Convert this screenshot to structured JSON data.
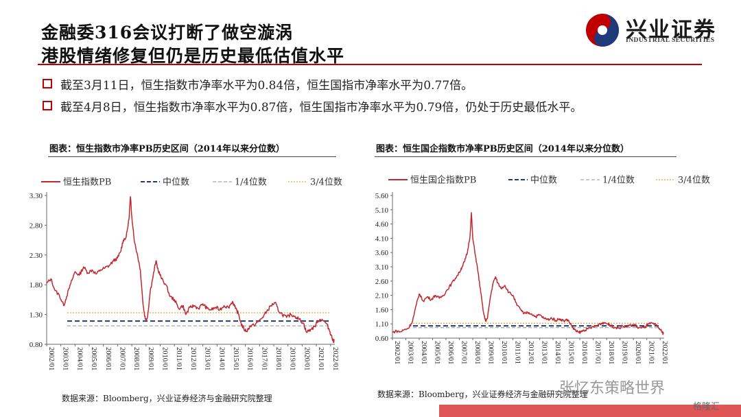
{
  "header": {
    "title_line1": "金融委316会议打断了做空漩涡",
    "title_line2": "港股情绪修复但仍是历史最低估值水平"
  },
  "logo": {
    "name_cn": "兴业证券",
    "name_en": "INDUSTRIAL SECURITIES",
    "accent": "#c00000"
  },
  "bullets": [
    "截至3月11日，恒生指数市净率水平为0.84倍，恒生国指市净率水平为0.77倍。",
    "截至4月8日，恒生指数市净率水平为0.87倍，恒生国指市净率水平为0.79倍，仍处于历史最低水平。"
  ],
  "source_note": "数据来源：Bloomberg，兴业证券经济与金融研究院整理",
  "watermark": "张忆东策略世界",
  "watermark_small": "格隆汇",
  "chart_data": [
    {
      "type": "line",
      "title": "图表：恒生指数市净率PB历史区间（2014年以来分位数）",
      "legend": [
        "恒生指数PB",
        "中位数",
        "1/4位数",
        "3/4位数"
      ],
      "legend_placement": "top",
      "x_tick_labels": [
        "2002/01",
        "2003/01",
        "2004/01",
        "2005/01",
        "2006/01",
        "2007/01",
        "2008/01",
        "2009/01",
        "2010/01",
        "2011/01",
        "2012/01",
        "2013/01",
        "2014/01",
        "2015/01",
        "2016/01",
        "2017/01",
        "2018/01",
        "2019/01",
        "2020/01",
        "2021/01",
        "2022/01"
      ],
      "y_tick_labels": [
        "0.80",
        "1.30",
        "1.80",
        "2.30",
        "2.80",
        "3.30"
      ],
      "ylim": [
        0.8,
        3.3
      ],
      "xlim": [
        2002.0,
        2022.3
      ],
      "reference_lines": {
        "median": 1.19,
        "q1": 1.11,
        "q3": 1.33
      },
      "colors": {
        "series": "#c0282d",
        "median": "#1f3a78",
        "q1": "#a6a6a6",
        "q3": "#e8a33c"
      },
      "series": [
        {
          "name": "恒生指数PB",
          "x": [
            2002.0,
            2002.3,
            2002.6,
            2002.9,
            2003.2,
            2003.4,
            2003.7,
            2004.0,
            2004.3,
            2004.6,
            2004.9,
            2005.2,
            2005.5,
            2005.8,
            2006.1,
            2006.4,
            2006.7,
            2007.0,
            2007.2,
            2007.4,
            2007.6,
            2007.8,
            2007.9,
            2008.0,
            2008.2,
            2008.4,
            2008.6,
            2008.8,
            2008.95,
            2009.1,
            2009.3,
            2009.5,
            2009.7,
            2009.85,
            2010.1,
            2010.4,
            2010.7,
            2011.0,
            2011.3,
            2011.6,
            2011.8,
            2012.1,
            2012.4,
            2012.7,
            2013.0,
            2013.3,
            2013.6,
            2013.9,
            2014.2,
            2014.5,
            2014.8,
            2015.1,
            2015.3,
            2015.5,
            2015.7,
            2015.9,
            2016.1,
            2016.3,
            2016.6,
            2016.9,
            2017.2,
            2017.5,
            2017.8,
            2018.1,
            2018.3,
            2018.6,
            2018.9,
            2019.2,
            2019.5,
            2019.8,
            2020.1,
            2020.3,
            2020.6,
            2020.9,
            2021.1,
            2021.4,
            2021.7,
            2021.9,
            2022.05,
            2022.2,
            2022.25
          ],
          "values": [
            1.82,
            1.9,
            1.7,
            1.62,
            1.45,
            1.6,
            1.82,
            2.02,
            1.96,
            2.1,
            2.0,
            2.05,
            1.98,
            2.05,
            2.08,
            2.12,
            2.2,
            2.25,
            2.35,
            2.55,
            2.6,
            2.9,
            3.28,
            2.95,
            2.5,
            2.3,
            2.05,
            1.45,
            1.22,
            1.25,
            1.7,
            1.95,
            2.2,
            2.05,
            1.9,
            1.8,
            1.6,
            1.55,
            1.4,
            1.45,
            1.3,
            1.42,
            1.45,
            1.4,
            1.48,
            1.4,
            1.38,
            1.42,
            1.38,
            1.45,
            1.42,
            1.52,
            1.4,
            1.32,
            1.15,
            1.05,
            1.02,
            1.1,
            1.12,
            1.18,
            1.25,
            1.35,
            1.45,
            1.5,
            1.38,
            1.3,
            1.25,
            1.3,
            1.27,
            1.22,
            1.15,
            1.0,
            1.05,
            1.1,
            1.2,
            1.22,
            1.15,
            1.05,
            0.95,
            0.84,
            0.87
          ]
        }
      ]
    },
    {
      "type": "line",
      "title": "图表：恒生国企指数市净率PB历史区间（2014年以来分位数）",
      "legend": [
        "恒生国企指数PB",
        "中位数",
        "1/4位数",
        "3/4位数"
      ],
      "legend_placement": "top",
      "x_tick_labels": [
        "2002/01",
        "2003/01",
        "2004/01",
        "2005/01",
        "2006/01",
        "2007/01",
        "2008/01",
        "2009/01",
        "2010/01",
        "2011/01",
        "2012/01",
        "2013/01",
        "2014/01",
        "2015/01",
        "2016/01",
        "2017/01",
        "2018/01",
        "2019/01",
        "2020/01",
        "2021/01",
        "2022/01"
      ],
      "y_tick_labels": [
        "0.60",
        "1.10",
        "1.60",
        "2.10",
        "2.60",
        "3.10",
        "3.60",
        "4.10",
        "4.60",
        "5.10",
        "5.60"
      ],
      "ylim": [
        0.6,
        5.6
      ],
      "xlim": [
        2002.0,
        2022.3
      ],
      "reference_lines": {
        "median": 1.03,
        "q1": 0.97,
        "q3": 1.12
      },
      "colors": {
        "series": "#c0282d",
        "median": "#1f3a78",
        "q1": "#a6a6a6",
        "q3": "#e8a33c"
      },
      "series": [
        {
          "name": "恒生国企指数PB",
          "x": [
            2002.0,
            2002.3,
            2002.6,
            2002.9,
            2003.2,
            2003.5,
            2003.8,
            2004.0,
            2004.3,
            2004.6,
            2004.9,
            2005.2,
            2005.5,
            2005.8,
            2006.1,
            2006.4,
            2006.7,
            2007.0,
            2007.2,
            2007.4,
            2007.6,
            2007.8,
            2007.9,
            2008.0,
            2008.2,
            2008.4,
            2008.6,
            2008.8,
            2008.95,
            2009.1,
            2009.3,
            2009.5,
            2009.7,
            2009.85,
            2010.1,
            2010.4,
            2010.7,
            2011.0,
            2011.3,
            2011.6,
            2011.8,
            2012.1,
            2012.4,
            2012.7,
            2013.0,
            2013.3,
            2013.6,
            2013.9,
            2014.2,
            2014.5,
            2014.8,
            2015.1,
            2015.3,
            2015.5,
            2015.7,
            2015.9,
            2016.1,
            2016.3,
            2016.6,
            2016.9,
            2017.2,
            2017.5,
            2017.8,
            2018.1,
            2018.3,
            2018.6,
            2018.9,
            2019.2,
            2019.5,
            2019.8,
            2020.1,
            2020.3,
            2020.6,
            2020.9,
            2021.1,
            2021.4,
            2021.7,
            2021.9,
            2022.05,
            2022.2,
            2022.25
          ],
          "values": [
            0.8,
            0.85,
            0.82,
            0.9,
            0.95,
            1.2,
            1.8,
            2.15,
            1.9,
            2.05,
            1.95,
            2.1,
            2.0,
            2.1,
            2.3,
            2.5,
            2.7,
            2.9,
            3.1,
            3.3,
            3.6,
            4.2,
            5.0,
            4.1,
            3.5,
            2.9,
            2.2,
            1.5,
            1.2,
            1.3,
            2.0,
            2.5,
            2.75,
            2.55,
            2.35,
            2.45,
            2.2,
            2.1,
            1.75,
            1.6,
            1.45,
            1.5,
            1.45,
            1.35,
            1.42,
            1.3,
            1.25,
            1.3,
            1.22,
            1.28,
            1.2,
            1.25,
            1.1,
            0.95,
            0.85,
            0.8,
            0.82,
            0.88,
            0.92,
            0.98,
            1.02,
            1.1,
            1.15,
            1.1,
            1.05,
            0.98,
            0.95,
            1.02,
            1.0,
            1.05,
            1.08,
            0.98,
            0.95,
            1.0,
            1.08,
            1.12,
            1.05,
            0.95,
            0.88,
            0.77,
            0.79
          ]
        }
      ]
    }
  ]
}
